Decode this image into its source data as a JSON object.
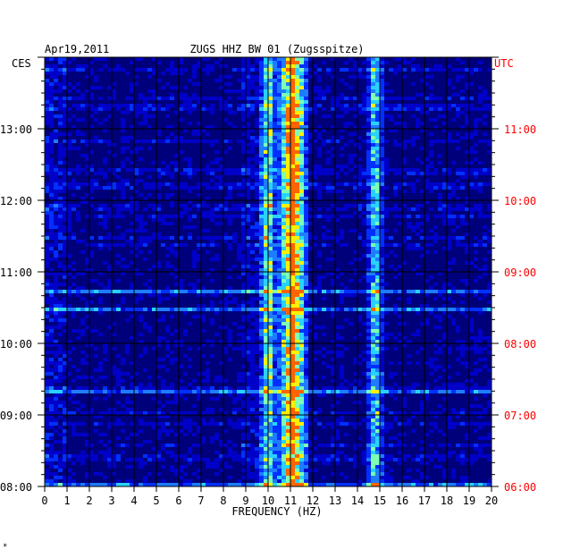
{
  "chart_data": {
    "type": "heatmap",
    "title_left": "Apr19,2011",
    "title_center": "ZUGS HHZ BW 01 (Zugsspitze)",
    "xlabel": "FREQUENCY (HZ)",
    "left_axis_unit": "CES",
    "right_axis_unit": "UTC",
    "xlim": [
      0,
      20
    ],
    "x_ticks": [
      0,
      1,
      2,
      3,
      4,
      5,
      6,
      7,
      8,
      9,
      10,
      11,
      12,
      13,
      14,
      15,
      16,
      17,
      18,
      19,
      20
    ],
    "time_range_left": [
      "08:00",
      "14:00"
    ],
    "left_ticks": [
      "08:00",
      "09:00",
      "10:00",
      "11:00",
      "12:00",
      "13:00"
    ],
    "right_ticks": [
      "06:00",
      "07:00",
      "08:00",
      "09:00",
      "10:00",
      "11:00"
    ],
    "colormap": [
      "#00007a",
      "#0000c8",
      "#0030ff",
      "#1e7dff",
      "#28d2ff",
      "#7dffb4",
      "#fff000",
      "#ff6400"
    ],
    "persistent_bands_hz": [
      10.0,
      10.9,
      11.3,
      14.8
    ],
    "broadband_events_time": [
      "08:02",
      "09:20",
      "10:30",
      "10:45"
    ]
  },
  "colors": {
    "left_tick_color": "#000000",
    "right_tick_color": "#ff0000",
    "background": "#00007a"
  },
  "footer_mark": "*"
}
